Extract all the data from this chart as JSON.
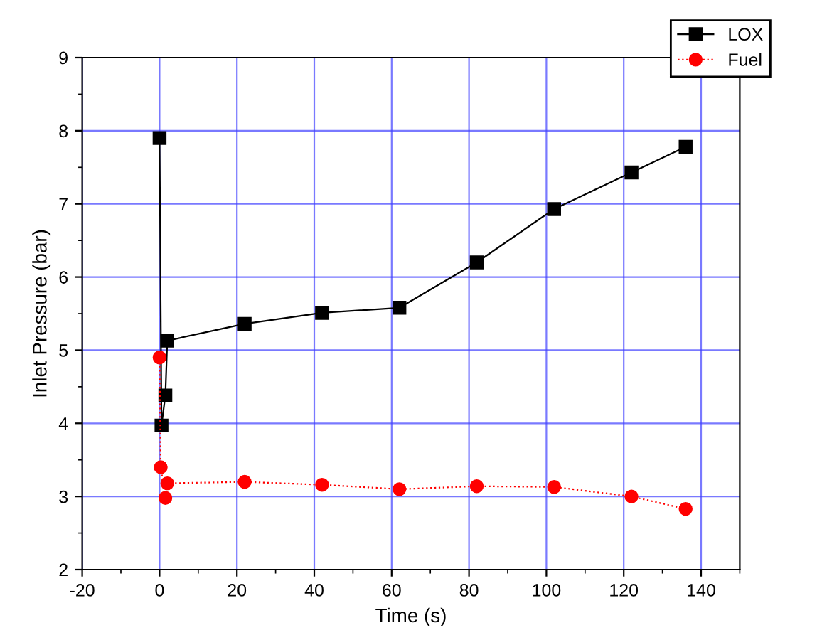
{
  "chart_data": {
    "type": "line",
    "xlabel": "Time (s)",
    "ylabel": "Inlet Pressure (bar)",
    "xlim": [
      -20,
      150
    ],
    "xticks": [
      -20,
      0,
      20,
      40,
      60,
      80,
      100,
      120,
      140
    ],
    "ylim": [
      2,
      9
    ],
    "yticks": [
      2,
      3,
      4,
      5,
      6,
      7,
      8,
      9
    ],
    "grid": true,
    "legend": "top right",
    "series": [
      {
        "name": "LOX",
        "color": "#000000",
        "marker": "square",
        "line_style": "solid",
        "x": [
          0,
          0.5,
          1.5,
          2,
          22,
          42,
          62,
          82,
          102,
          122,
          136
        ],
        "values": [
          7.9,
          3.97,
          4.38,
          5.13,
          5.36,
          5.51,
          5.58,
          6.2,
          6.93,
          7.43,
          7.78
        ]
      },
      {
        "name": "Fuel",
        "color": "#ff0000",
        "marker": "circle",
        "line_style": "dotted",
        "x": [
          0,
          0.3,
          1.5,
          2,
          22,
          42,
          62,
          82,
          102,
          122,
          136
        ],
        "values": [
          4.9,
          3.4,
          2.98,
          3.18,
          3.2,
          3.16,
          3.1,
          3.14,
          3.13,
          3.0,
          2.83
        ]
      }
    ]
  }
}
